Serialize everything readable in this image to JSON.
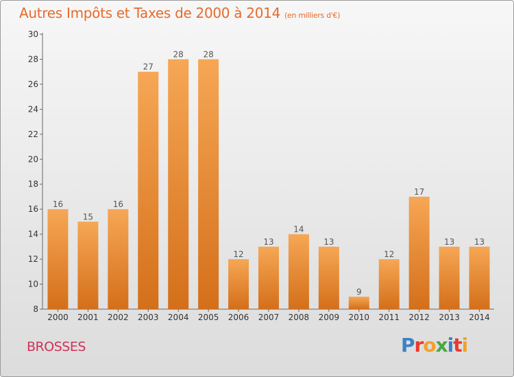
{
  "header": {
    "title": "Autres Impôts et Taxes de 2000 à 2014",
    "subtitle": "(en milliers d'€)"
  },
  "footer": {
    "place": "BROSSES",
    "logo_letters": [
      {
        "ch": "P",
        "color": "#3b82c4"
      },
      {
        "ch": "r",
        "color": "#e8392e"
      },
      {
        "ch": "o",
        "color": "#f2a12a"
      },
      {
        "ch": "x",
        "color": "#46a843"
      },
      {
        "ch": "i",
        "color": "#3b82c4"
      },
      {
        "ch": "t",
        "color": "#e8392e"
      },
      {
        "ch": "i",
        "color": "#f2a12a"
      }
    ]
  },
  "chart_data": {
    "type": "bar",
    "title": "Autres Impôts et Taxes de 2000 à 2014",
    "subtitle": "(en milliers d'€)",
    "categories": [
      "2000",
      "2001",
      "2002",
      "2003",
      "2004",
      "2005",
      "2006",
      "2007",
      "2008",
      "2009",
      "2010",
      "2011",
      "2012",
      "2013",
      "2014"
    ],
    "values": [
      16,
      15,
      16,
      27,
      28,
      28,
      12,
      13,
      14,
      13,
      9,
      12,
      17,
      13,
      13
    ],
    "ylim": [
      8,
      30
    ],
    "yticks": [
      8,
      10,
      12,
      14,
      16,
      18,
      20,
      22,
      24,
      26,
      28,
      30
    ],
    "grid": false,
    "legend": "none",
    "bar_color_top": "#f6a755",
    "bar_color_bottom": "#d46f1a",
    "label_color": "#555555"
  }
}
